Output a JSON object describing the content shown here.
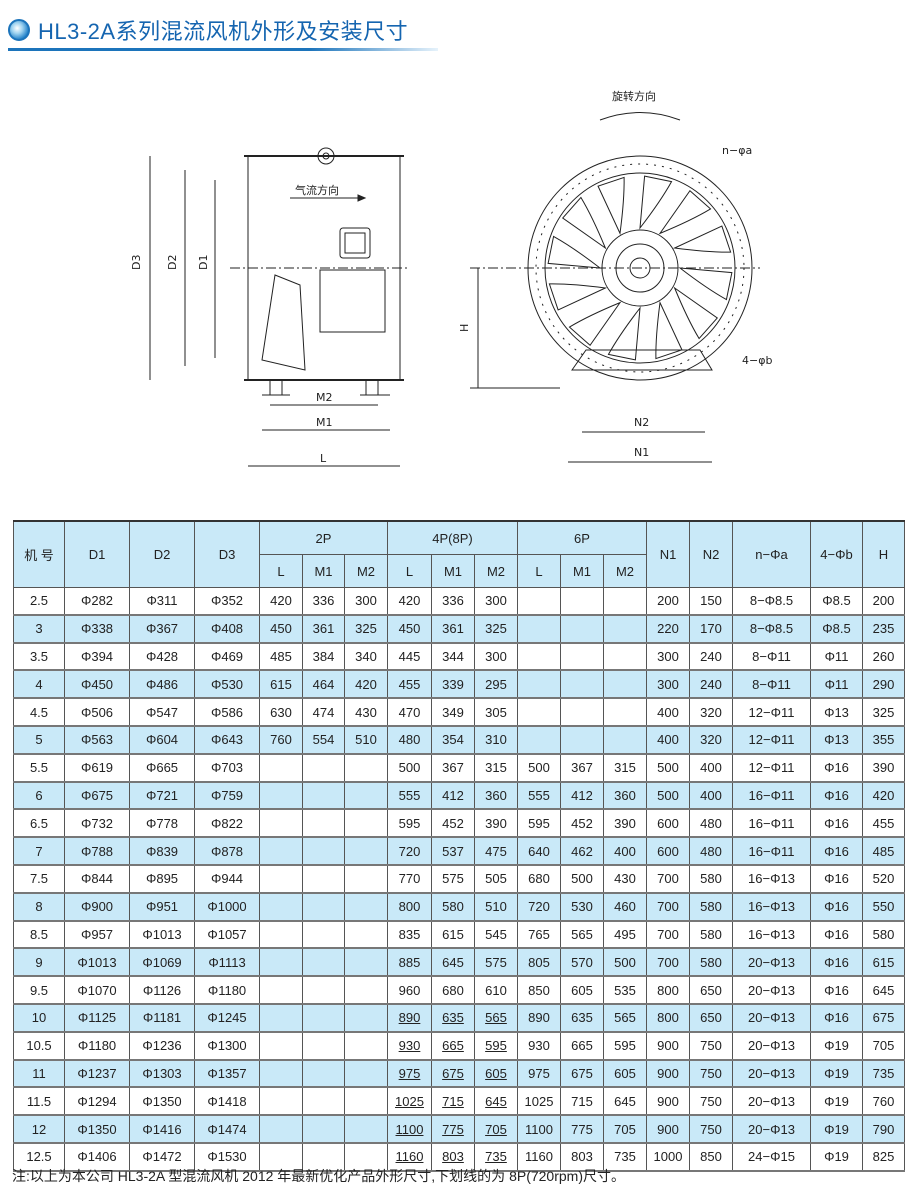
{
  "title": "HL3-2A系列混流风机外形及安装尺寸",
  "drawing": {
    "airflow_label": "气流方向",
    "rotation_label": "旋转方向",
    "side_labels": {
      "d3": "D3",
      "d2": "D2",
      "d1": "D1",
      "m2": "M2",
      "m1": "M1",
      "l": "L"
    },
    "front_labels": {
      "na": "n−φa",
      "h": "H",
      "b": "4−φb",
      "n2": "N2",
      "n1": "N1"
    }
  },
  "table": {
    "headers": {
      "model": "机 号",
      "d1": "D1",
      "d2": "D2",
      "d3": "D3",
      "p2": "2P",
      "p4": "4P(8P)",
      "p6": "6P",
      "n1": "N1",
      "n2": "N2",
      "na": "n−Φa",
      "b": "4−Φb",
      "h": "H",
      "l": "L",
      "m1": "M1",
      "m2": "M2"
    },
    "rows": [
      {
        "no": "2.5",
        "d1": "Φ282",
        "d2": "Φ311",
        "d3": "Φ352",
        "p2": [
          "420",
          "336",
          "300"
        ],
        "p4": [
          "420",
          "336",
          "300"
        ],
        "p6": [
          "",
          "",
          ""
        ],
        "n1": "200",
        "n2": "150",
        "na": "8−Φ8.5",
        "b": "Φ8.5",
        "h": "200",
        "underlined": false
      },
      {
        "no": "3",
        "d1": "Φ338",
        "d2": "Φ367",
        "d3": "Φ408",
        "p2": [
          "450",
          "361",
          "325"
        ],
        "p4": [
          "450",
          "361",
          "325"
        ],
        "p6": [
          "",
          "",
          ""
        ],
        "n1": "220",
        "n2": "170",
        "na": "8−Φ8.5",
        "b": "Φ8.5",
        "h": "235",
        "underlined": false
      },
      {
        "no": "3.5",
        "d1": "Φ394",
        "d2": "Φ428",
        "d3": "Φ469",
        "p2": [
          "485",
          "384",
          "340"
        ],
        "p4": [
          "445",
          "344",
          "300"
        ],
        "p6": [
          "",
          "",
          ""
        ],
        "n1": "300",
        "n2": "240",
        "na": "8−Φ11",
        "b": "Φ11",
        "h": "260",
        "underlined": false
      },
      {
        "no": "4",
        "d1": "Φ450",
        "d2": "Φ486",
        "d3": "Φ530",
        "p2": [
          "615",
          "464",
          "420"
        ],
        "p4": [
          "455",
          "339",
          "295"
        ],
        "p6": [
          "",
          "",
          ""
        ],
        "n1": "300",
        "n2": "240",
        "na": "8−Φ11",
        "b": "Φ11",
        "h": "290",
        "underlined": false
      },
      {
        "no": "4.5",
        "d1": "Φ506",
        "d2": "Φ547",
        "d3": "Φ586",
        "p2": [
          "630",
          "474",
          "430"
        ],
        "p4": [
          "470",
          "349",
          "305"
        ],
        "p6": [
          "",
          "",
          ""
        ],
        "n1": "400",
        "n2": "320",
        "na": "12−Φ11",
        "b": "Φ13",
        "h": "325",
        "underlined": false
      },
      {
        "no": "5",
        "d1": "Φ563",
        "d2": "Φ604",
        "d3": "Φ643",
        "p2": [
          "760",
          "554",
          "510"
        ],
        "p4": [
          "480",
          "354",
          "310"
        ],
        "p6": [
          "",
          "",
          ""
        ],
        "n1": "400",
        "n2": "320",
        "na": "12−Φ11",
        "b": "Φ13",
        "h": "355",
        "underlined": false
      },
      {
        "no": "5.5",
        "d1": "Φ619",
        "d2": "Φ665",
        "d3": "Φ703",
        "p2": [
          "",
          "",
          ""
        ],
        "p4": [
          "500",
          "367",
          "315"
        ],
        "p6": [
          "500",
          "367",
          "315"
        ],
        "n1": "500",
        "n2": "400",
        "na": "12−Φ11",
        "b": "Φ16",
        "h": "390",
        "underlined": false
      },
      {
        "no": "6",
        "d1": "Φ675",
        "d2": "Φ721",
        "d3": "Φ759",
        "p2": [
          "",
          "",
          ""
        ],
        "p4": [
          "555",
          "412",
          "360"
        ],
        "p6": [
          "555",
          "412",
          "360"
        ],
        "n1": "500",
        "n2": "400",
        "na": "16−Φ11",
        "b": "Φ16",
        "h": "420",
        "underlined": false
      },
      {
        "no": "6.5",
        "d1": "Φ732",
        "d2": "Φ778",
        "d3": "Φ822",
        "p2": [
          "",
          "",
          ""
        ],
        "p4": [
          "595",
          "452",
          "390"
        ],
        "p6": [
          "595",
          "452",
          "390"
        ],
        "n1": "600",
        "n2": "480",
        "na": "16−Φ11",
        "b": "Φ16",
        "h": "455",
        "underlined": false
      },
      {
        "no": "7",
        "d1": "Φ788",
        "d2": "Φ839",
        "d3": "Φ878",
        "p2": [
          "",
          "",
          ""
        ],
        "p4": [
          "720",
          "537",
          "475"
        ],
        "p6": [
          "640",
          "462",
          "400"
        ],
        "n1": "600",
        "n2": "480",
        "na": "16−Φ11",
        "b": "Φ16",
        "h": "485",
        "underlined": false
      },
      {
        "no": "7.5",
        "d1": "Φ844",
        "d2": "Φ895",
        "d3": "Φ944",
        "p2": [
          "",
          "",
          ""
        ],
        "p4": [
          "770",
          "575",
          "505"
        ],
        "p6": [
          "680",
          "500",
          "430"
        ],
        "n1": "700",
        "n2": "580",
        "na": "16−Φ13",
        "b": "Φ16",
        "h": "520",
        "underlined": false
      },
      {
        "no": "8",
        "d1": "Φ900",
        "d2": "Φ951",
        "d3": "Φ1000",
        "p2": [
          "",
          "",
          ""
        ],
        "p4": [
          "800",
          "580",
          "510"
        ],
        "p6": [
          "720",
          "530",
          "460"
        ],
        "n1": "700",
        "n2": "580",
        "na": "16−Φ13",
        "b": "Φ16",
        "h": "550",
        "underlined": false
      },
      {
        "no": "8.5",
        "d1": "Φ957",
        "d2": "Φ1013",
        "d3": "Φ1057",
        "p2": [
          "",
          "",
          ""
        ],
        "p4": [
          "835",
          "615",
          "545"
        ],
        "p6": [
          "765",
          "565",
          "495"
        ],
        "n1": "700",
        "n2": "580",
        "na": "16−Φ13",
        "b": "Φ16",
        "h": "580",
        "underlined": false
      },
      {
        "no": "9",
        "d1": "Φ1013",
        "d2": "Φ1069",
        "d3": "Φ1113",
        "p2": [
          "",
          "",
          ""
        ],
        "p4": [
          "885",
          "645",
          "575"
        ],
        "p6": [
          "805",
          "570",
          "500"
        ],
        "n1": "700",
        "n2": "580",
        "na": "20−Φ13",
        "b": "Φ16",
        "h": "615",
        "underlined": false
      },
      {
        "no": "9.5",
        "d1": "Φ1070",
        "d2": "Φ1126",
        "d3": "Φ1180",
        "p2": [
          "",
          "",
          ""
        ],
        "p4": [
          "960",
          "680",
          "610"
        ],
        "p6": [
          "850",
          "605",
          "535"
        ],
        "n1": "800",
        "n2": "650",
        "na": "20−Φ13",
        "b": "Φ16",
        "h": "645",
        "underlined": false
      },
      {
        "no": "10",
        "d1": "Φ1125",
        "d2": "Φ1181",
        "d3": "Φ1245",
        "p2": [
          "",
          "",
          ""
        ],
        "p4": [
          "890",
          "635",
          "565"
        ],
        "p6": [
          "890",
          "635",
          "565"
        ],
        "n1": "800",
        "n2": "650",
        "na": "20−Φ13",
        "b": "Φ16",
        "h": "675",
        "underlined": true
      },
      {
        "no": "10.5",
        "d1": "Φ1180",
        "d2": "Φ1236",
        "d3": "Φ1300",
        "p2": [
          "",
          "",
          ""
        ],
        "p4": [
          "930",
          "665",
          "595"
        ],
        "p6": [
          "930",
          "665",
          "595"
        ],
        "n1": "900",
        "n2": "750",
        "na": "20−Φ13",
        "b": "Φ19",
        "h": "705",
        "underlined": true
      },
      {
        "no": "11",
        "d1": "Φ1237",
        "d2": "Φ1303",
        "d3": "Φ1357",
        "p2": [
          "",
          "",
          ""
        ],
        "p4": [
          "975",
          "675",
          "605"
        ],
        "p6": [
          "975",
          "675",
          "605"
        ],
        "n1": "900",
        "n2": "750",
        "na": "20−Φ13",
        "b": "Φ19",
        "h": "735",
        "underlined": true
      },
      {
        "no": "11.5",
        "d1": "Φ1294",
        "d2": "Φ1350",
        "d3": "Φ1418",
        "p2": [
          "",
          "",
          ""
        ],
        "p4": [
          "1025",
          "715",
          "645"
        ],
        "p6": [
          "1025",
          "715",
          "645"
        ],
        "n1": "900",
        "n2": "750",
        "na": "20−Φ13",
        "b": "Φ19",
        "h": "760",
        "underlined": true
      },
      {
        "no": "12",
        "d1": "Φ1350",
        "d2": "Φ1416",
        "d3": "Φ1474",
        "p2": [
          "",
          "",
          ""
        ],
        "p4": [
          "1100",
          "775",
          "705"
        ],
        "p6": [
          "1100",
          "775",
          "705"
        ],
        "n1": "900",
        "n2": "750",
        "na": "20−Φ13",
        "b": "Φ19",
        "h": "790",
        "underlined": true
      },
      {
        "no": "12.5",
        "d1": "Φ1406",
        "d2": "Φ1472",
        "d3": "Φ1530",
        "p2": [
          "",
          "",
          ""
        ],
        "p4": [
          "1160",
          "803",
          "735"
        ],
        "p6": [
          "1160",
          "803",
          "735"
        ],
        "n1": "1000",
        "n2": "850",
        "na": "24−Φ15",
        "b": "Φ19",
        "h": "825",
        "underlined": true
      }
    ]
  },
  "note": "注:以上为本公司 HL3-2A 型混流风机 2012 年最新优化产品外形尺寸,下划线的为 8P(720rpm)尺寸。",
  "colors": {
    "title": "#1565b0",
    "row_alt": "#c9e9f8"
  }
}
